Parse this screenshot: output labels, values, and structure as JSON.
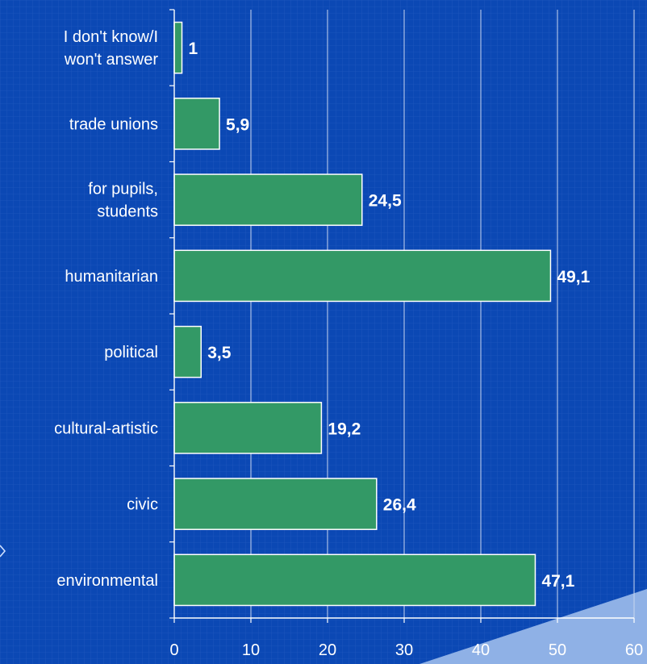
{
  "chart_data": {
    "type": "bar",
    "orientation": "horizontal",
    "categories": [
      "I don't know/I won't answer",
      "trade unions",
      "for pupils, students",
      "humanitarian",
      "political",
      "cultural-artistic",
      "civic",
      "environmental"
    ],
    "category_lines": [
      [
        "I don't know/I",
        "won't answer"
      ],
      [
        "trade unions"
      ],
      [
        "for pupils,",
        "students"
      ],
      [
        "humanitarian"
      ],
      [
        "political"
      ],
      [
        "cultural-artistic"
      ],
      [
        "civic"
      ],
      [
        "environmental"
      ]
    ],
    "values": [
      1,
      5.9,
      24.5,
      49.1,
      3.5,
      19.2,
      26.4,
      47.1
    ],
    "value_labels": [
      "1",
      "5,9",
      "24,5",
      "49,1",
      "3,5",
      "19,2",
      "26,4",
      "47,1"
    ],
    "xlim": [
      0,
      60
    ],
    "xticks": [
      0,
      10,
      20,
      30,
      40,
      50,
      60
    ],
    "title": "",
    "xlabel": "",
    "ylabel": "",
    "grid": "vertical",
    "legend": "none",
    "colors": {
      "background": "#0b48b4",
      "bar_fill": "#339966",
      "bar_stroke": "#ffffff",
      "gridline": "#c9d6ef",
      "text": "#ffffff",
      "corner_accent": "#8fb1e6"
    }
  }
}
